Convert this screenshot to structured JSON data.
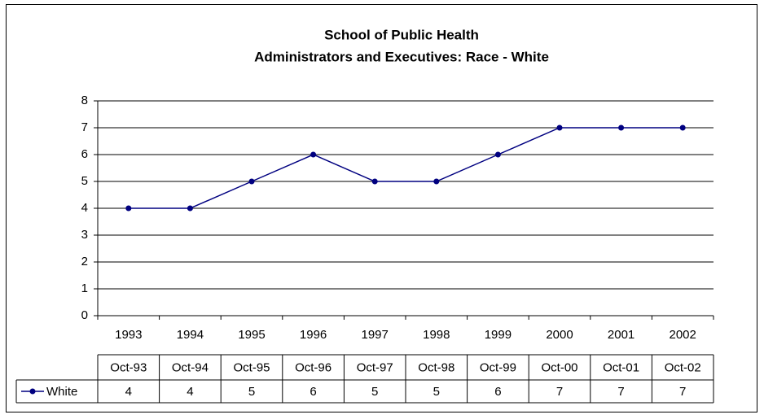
{
  "chart_data": {
    "type": "line",
    "title": [
      "School of Public Health",
      "Administrators and Executives: Race - White"
    ],
    "categories": [
      "1993",
      "1994",
      "1995",
      "1996",
      "1997",
      "1998",
      "1999",
      "2000",
      "2001",
      "2002"
    ],
    "table_headers": [
      "Oct-93",
      "Oct-94",
      "Oct-95",
      "Oct-96",
      "Oct-97",
      "Oct-98",
      "Oct-99",
      "Oct-00",
      "Oct-01",
      "Oct-02"
    ],
    "series": [
      {
        "name": "White",
        "color": "#000080",
        "values": [
          4,
          4,
          5,
          6,
          5,
          5,
          6,
          7,
          7,
          7
        ]
      }
    ],
    "ylim": [
      0,
      8
    ],
    "yticks": [
      0,
      1,
      2,
      3,
      4,
      5,
      6,
      7,
      8
    ],
    "grid": true
  }
}
